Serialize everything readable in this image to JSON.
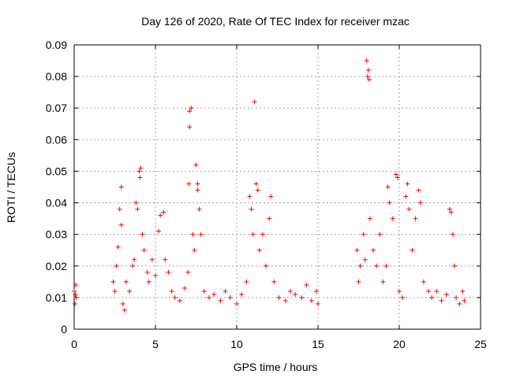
{
  "chart_data": {
    "type": "scatter",
    "title": "Day 126 of 2020, Rate Of TEC Index for receiver mzac",
    "xlabel": "GPS time / hours",
    "ylabel": "ROTI / TECUs",
    "xlim": [
      0,
      25
    ],
    "ylim": [
      0,
      0.09
    ],
    "xticks": [
      0,
      5,
      10,
      15,
      20,
      25
    ],
    "xtick_labels": [
      "0",
      "5",
      "10",
      "15",
      "20",
      "25"
    ],
    "yticks": [
      0,
      0.01,
      0.02,
      0.03,
      0.04,
      0.05,
      0.06,
      0.07,
      0.08,
      0.09
    ],
    "ytick_labels": [
      "0",
      "0.01",
      "0.02",
      "0.03",
      "0.04",
      "0.05",
      "0.06",
      "0.07",
      "0.08",
      "0.09"
    ],
    "grid": true,
    "marker": "+",
    "color": "#ff0000",
    "series": [
      {
        "points": [
          [
            0.0,
            0.012
          ],
          [
            0.05,
            0.008
          ],
          [
            0.1,
            0.014
          ],
          [
            0.12,
            0.01
          ],
          [
            0.08,
            0.011
          ],
          [
            2.4,
            0.015
          ],
          [
            2.5,
            0.012
          ],
          [
            2.6,
            0.02
          ],
          [
            2.7,
            0.026
          ],
          [
            2.8,
            0.038
          ],
          [
            2.9,
            0.045
          ],
          [
            2.9,
            0.033
          ],
          [
            3.0,
            0.008
          ],
          [
            3.1,
            0.006
          ],
          [
            3.2,
            0.015
          ],
          [
            3.4,
            0.012
          ],
          [
            3.6,
            0.02
          ],
          [
            3.7,
            0.022
          ],
          [
            3.8,
            0.04
          ],
          [
            3.9,
            0.038
          ],
          [
            4.0,
            0.05
          ],
          [
            4.05,
            0.048
          ],
          [
            4.1,
            0.051
          ],
          [
            4.2,
            0.03
          ],
          [
            4.3,
            0.025
          ],
          [
            4.5,
            0.018
          ],
          [
            4.6,
            0.015
          ],
          [
            4.8,
            0.022
          ],
          [
            5.0,
            0.017
          ],
          [
            5.2,
            0.031
          ],
          [
            5.3,
            0.036
          ],
          [
            5.5,
            0.037
          ],
          [
            5.6,
            0.022
          ],
          [
            5.8,
            0.018
          ],
          [
            6.0,
            0.012
          ],
          [
            6.2,
            0.01
          ],
          [
            6.5,
            0.009
          ],
          [
            6.8,
            0.013
          ],
          [
            7.0,
            0.018
          ],
          [
            7.05,
            0.046
          ],
          [
            7.1,
            0.064
          ],
          [
            7.1,
            0.069
          ],
          [
            7.2,
            0.07
          ],
          [
            7.3,
            0.03
          ],
          [
            7.4,
            0.025
          ],
          [
            7.5,
            0.052
          ],
          [
            7.6,
            0.046
          ],
          [
            7.6,
            0.044
          ],
          [
            7.7,
            0.038
          ],
          [
            7.8,
            0.03
          ],
          [
            8.0,
            0.012
          ],
          [
            8.3,
            0.01
          ],
          [
            8.6,
            0.011
          ],
          [
            9.0,
            0.009
          ],
          [
            9.3,
            0.012
          ],
          [
            9.6,
            0.01
          ],
          [
            10.0,
            0.008
          ],
          [
            10.3,
            0.011
          ],
          [
            10.6,
            0.015
          ],
          [
            10.8,
            0.042
          ],
          [
            10.9,
            0.038
          ],
          [
            11.0,
            0.03
          ],
          [
            11.1,
            0.072
          ],
          [
            11.2,
            0.046
          ],
          [
            11.3,
            0.044
          ],
          [
            11.4,
            0.025
          ],
          [
            11.6,
            0.03
          ],
          [
            11.8,
            0.02
          ],
          [
            12.0,
            0.035
          ],
          [
            12.1,
            0.042
          ],
          [
            12.3,
            0.015
          ],
          [
            12.6,
            0.01
          ],
          [
            13.0,
            0.009
          ],
          [
            13.3,
            0.012
          ],
          [
            13.6,
            0.011
          ],
          [
            14.0,
            0.01
          ],
          [
            14.3,
            0.014
          ],
          [
            14.6,
            0.009
          ],
          [
            14.9,
            0.012
          ],
          [
            15.0,
            0.008
          ],
          [
            17.4,
            0.025
          ],
          [
            17.5,
            0.015
          ],
          [
            17.6,
            0.02
          ],
          [
            17.8,
            0.03
          ],
          [
            17.9,
            0.022
          ],
          [
            18.0,
            0.085
          ],
          [
            18.05,
            0.08
          ],
          [
            18.1,
            0.082
          ],
          [
            18.15,
            0.079
          ],
          [
            18.2,
            0.035
          ],
          [
            18.4,
            0.025
          ],
          [
            18.6,
            0.02
          ],
          [
            18.8,
            0.03
          ],
          [
            19.0,
            0.015
          ],
          [
            19.2,
            0.02
          ],
          [
            19.3,
            0.045
          ],
          [
            19.4,
            0.04
          ],
          [
            19.6,
            0.035
          ],
          [
            19.8,
            0.049
          ],
          [
            19.9,
            0.048
          ],
          [
            20.0,
            0.012
          ],
          [
            20.2,
            0.01
          ],
          [
            20.4,
            0.042
          ],
          [
            20.5,
            0.046
          ],
          [
            20.6,
            0.038
          ],
          [
            20.8,
            0.025
          ],
          [
            21.0,
            0.035
          ],
          [
            21.2,
            0.044
          ],
          [
            21.3,
            0.04
          ],
          [
            21.5,
            0.015
          ],
          [
            21.8,
            0.012
          ],
          [
            22.0,
            0.01
          ],
          [
            22.3,
            0.012
          ],
          [
            22.6,
            0.009
          ],
          [
            22.9,
            0.011
          ],
          [
            23.1,
            0.038
          ],
          [
            23.2,
            0.037
          ],
          [
            23.3,
            0.03
          ],
          [
            23.4,
            0.02
          ],
          [
            23.5,
            0.01
          ],
          [
            23.7,
            0.008
          ],
          [
            23.9,
            0.012
          ],
          [
            24.0,
            0.009
          ]
        ]
      }
    ]
  }
}
